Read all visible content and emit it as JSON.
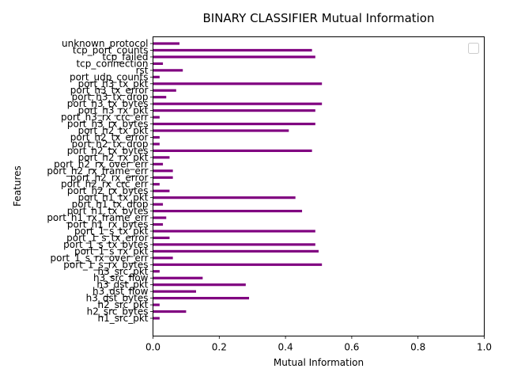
{
  "chart_data": {
    "type": "bar",
    "orientation": "horizontal",
    "title": "BINARY CLASSIFIER Mutual Information",
    "xlabel": "Mutual Information",
    "ylabel": "Features",
    "xlim": [
      0,
      1.0
    ],
    "xticks": [
      "0.0",
      "0.2",
      "0.4",
      "0.6",
      "0.8",
      "1.0"
    ],
    "legend": "top-right, empty",
    "bar_color": "#800080",
    "grid": false,
    "categories": [
      "h1_src_pkt",
      "h2_src_bytes",
      "h2_src_pkt",
      "h3_dst_bytes",
      "h3_dst_flow",
      "h3_dst_pkt",
      "h3_src_flow",
      "h3_src_pkt",
      "port_1_s_rx_bytes",
      "port_1_s_rx_over_err",
      "port_1_s_rx_pkt",
      "port_1_s_tx_bytes",
      "port_1_s_tx_error",
      "port_1_s_tx_pkt",
      "port_h1_rx_bytes",
      "port_h1_rx_frame_err",
      "port_h1_tx_bytes",
      "port_h1_tx_drop",
      "port_h1_tx_pkt",
      "port_h2_rx_bytes",
      "port_h2_rx_crc_err",
      "port_h2_rx_error",
      "port_h2_rx_frame_err",
      "port_h2_rx_over_err",
      "port_h2_rx_pkt",
      "port_h2_tx_bytes",
      "port_h2_tx_drop",
      "port_h2_tx_error",
      "port_h2_tx_pkt",
      "port_h3_rx_bytes",
      "port_h3_rx_crc_err",
      "port_h3_rx_pkt",
      "port_h3_tx_bytes",
      "port_h3_tx_drop",
      "port_h3_tx_error",
      "port_h3_tx_pkt",
      "port_udp_counts",
      "rst",
      "tcp_connection",
      "tcp_failed",
      "tcp_port_counts",
      "unknown_protocol"
    ],
    "values": [
      0.02,
      0.1,
      0.02,
      0.29,
      0.13,
      0.28,
      0.15,
      0.02,
      0.51,
      0.06,
      0.5,
      0.49,
      0.05,
      0.49,
      0.03,
      0.04,
      0.45,
      0.03,
      0.43,
      0.05,
      0.02,
      0.06,
      0.06,
      0.03,
      0.05,
      0.48,
      0.02,
      0.02,
      0.41,
      0.49,
      0.02,
      0.49,
      0.51,
      0.04,
      0.07,
      0.51,
      0.02,
      0.09,
      0.03,
      0.49,
      0.48,
      0.08
    ]
  }
}
